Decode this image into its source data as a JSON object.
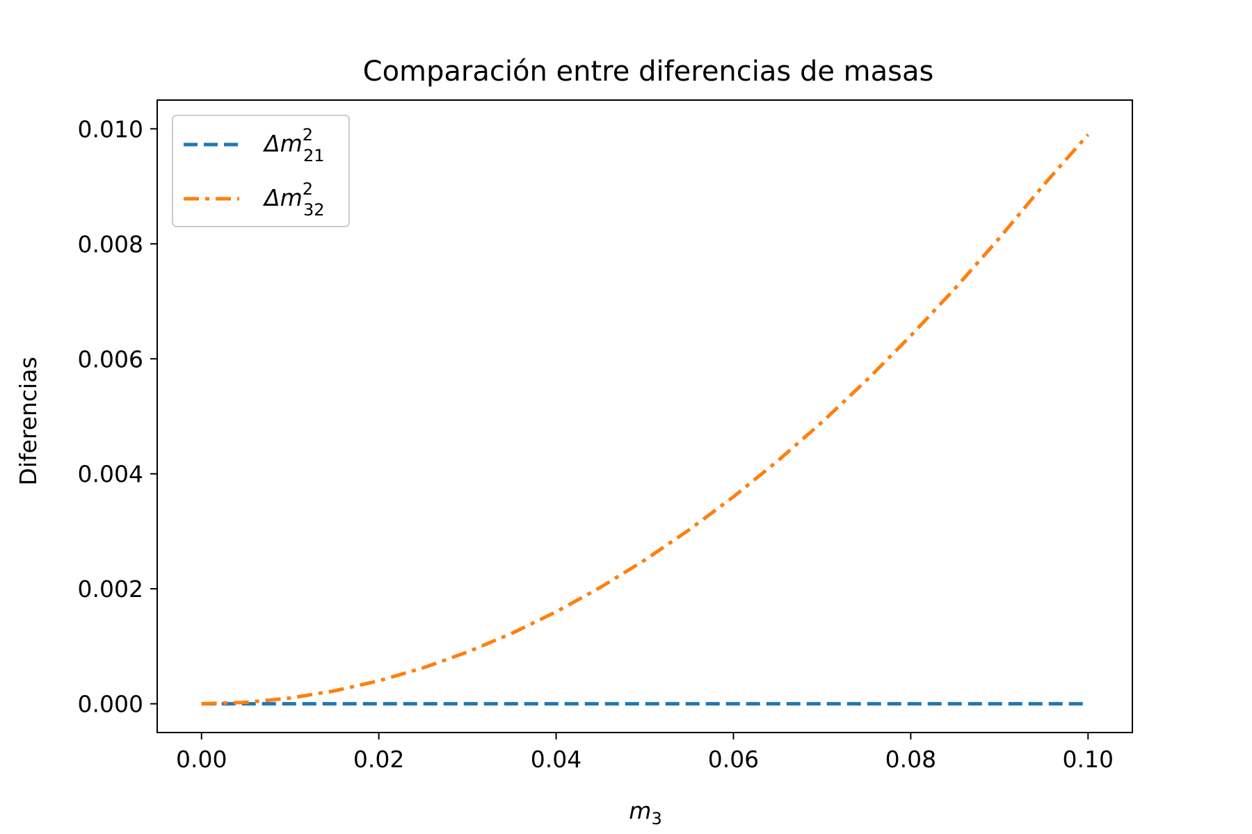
{
  "chart_data": {
    "type": "line",
    "title": "Comparación entre diferencias de masas",
    "xlabel": {
      "main": "m",
      "sub": "3"
    },
    "ylabel": "Diferencias",
    "xlim": [
      -0.005,
      0.105
    ],
    "ylim": [
      -0.0005,
      0.0105
    ],
    "x_ticks": [
      0.0,
      0.02,
      0.04,
      0.06,
      0.08,
      0.1
    ],
    "x_tick_labels": [
      "0.00",
      "0.02",
      "0.04",
      "0.06",
      "0.08",
      "0.10"
    ],
    "y_ticks": [
      0.0,
      0.002,
      0.004,
      0.006,
      0.008,
      0.01
    ],
    "y_tick_labels": [
      "0.000",
      "0.002",
      "0.004",
      "0.006",
      "0.008",
      "0.010"
    ],
    "grid": false,
    "legend_position": "top-left",
    "series": [
      {
        "label_main": "Δm",
        "label_sup": "2",
        "label_sub": "21",
        "color": "#1f77b4",
        "style": "dashed",
        "x": [
          0.0,
          0.1
        ],
        "y": [
          0.0,
          0.0
        ]
      },
      {
        "label_main": "Δm",
        "label_sup": "2",
        "label_sub": "32",
        "color": "#ff7f0e",
        "style": "dashdot",
        "x": [
          0.0,
          0.005,
          0.01,
          0.015,
          0.02,
          0.025,
          0.03,
          0.035,
          0.04,
          0.045,
          0.05,
          0.055,
          0.06,
          0.065,
          0.07,
          0.075,
          0.08,
          0.085,
          0.09,
          0.095,
          0.1
        ],
        "y": [
          0.0,
          2.5e-05,
          0.0001,
          0.000225,
          0.0004,
          0.000625,
          0.0009,
          0.001225,
          0.0016,
          0.002025,
          0.0025,
          0.003025,
          0.0036,
          0.004225,
          0.0049,
          0.005625,
          0.0064,
          0.007225,
          0.0081,
          0.009025,
          0.0099
        ]
      }
    ]
  }
}
